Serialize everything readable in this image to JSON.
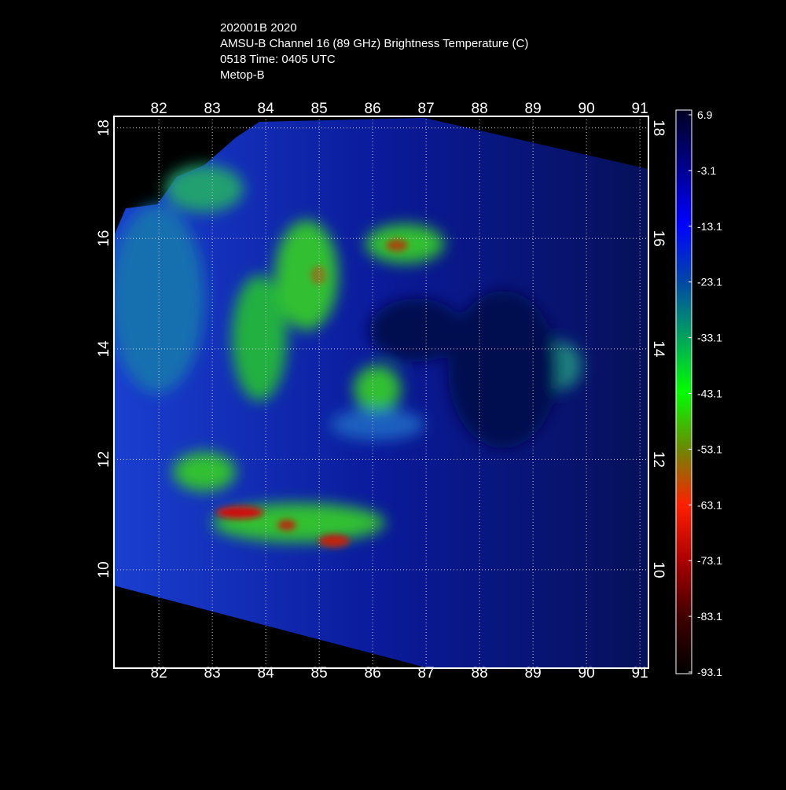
{
  "header": {
    "lines": [
      "202001B 2020",
      "AMSU-B Channel 16 (89 GHz) Brightness Temperature (C)",
      "0518 Time: 0405 UTC",
      "Metop-B"
    ]
  },
  "map": {
    "xlim": [
      81.16,
      91.16
    ],
    "ylim": [
      8.22,
      18.21
    ],
    "xticks": [
      82,
      83,
      84,
      85,
      86,
      87,
      88,
      89,
      90,
      91
    ],
    "yticks": [
      10,
      12,
      14,
      16,
      18
    ]
  },
  "colorbar": {
    "range": [
      -93.1,
      6.9
    ],
    "ticks": [
      6.9,
      -3.1,
      -13.1,
      -23.1,
      -33.1,
      -43.1,
      -53.1,
      -63.1,
      -73.1,
      -83.1,
      -93.1
    ]
  }
}
